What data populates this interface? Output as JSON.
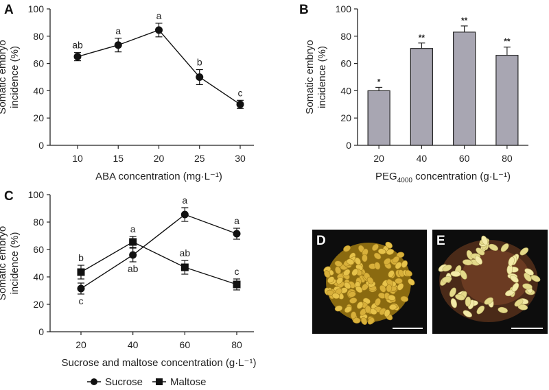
{
  "figure": {
    "panels": {
      "A": "A",
      "B": "B",
      "C": "C",
      "D": "D",
      "E": "E"
    }
  },
  "chart_data": [
    {
      "panel": "A",
      "type": "line",
      "xlabel": "ABA concentration (mg·L⁻¹)",
      "ylabel_line1": "Somatic embryo",
      "ylabel_line2": "incidence (%)",
      "x": [
        10,
        15,
        20,
        25,
        30
      ],
      "ylim": [
        0,
        100
      ],
      "yticks": [
        0,
        20,
        40,
        60,
        80,
        100
      ],
      "series": [
        {
          "values": [
            65,
            73.5,
            84.5,
            50,
            30
          ],
          "errors": [
            3,
            5,
            5,
            5.5,
            3
          ],
          "labels": [
            "ab",
            "a",
            "a",
            "b",
            "c"
          ]
        }
      ],
      "marker_color": "#111111"
    },
    {
      "panel": "B",
      "type": "bar",
      "xlabel_prefix": "PEG",
      "xlabel_sub": "4000",
      "xlabel_suffix": " concentration (g·L⁻¹)",
      "ylabel_line1": "Somatic embryo",
      "ylabel_line2": "incidence (%)",
      "categories": [
        "20",
        "40",
        "60",
        "80"
      ],
      "values": [
        40,
        71,
        83,
        66
      ],
      "errors": [
        2.5,
        4,
        4.5,
        6
      ],
      "labels": [
        "*",
        "**",
        "**",
        "**"
      ],
      "ylim": [
        0,
        100
      ],
      "yticks": [
        0,
        20,
        40,
        60,
        80,
        100
      ],
      "bar_color": "#a8a6b2"
    },
    {
      "panel": "C",
      "type": "line",
      "xlabel": "Sucrose and maltose concentration (g·L⁻¹)",
      "ylabel_line1": "Somatic embryo",
      "ylabel_line2": "incidence (%)",
      "x": [
        20,
        40,
        60,
        80
      ],
      "ylim": [
        0,
        100
      ],
      "yticks": [
        0,
        20,
        40,
        60,
        80,
        100
      ],
      "series": [
        {
          "name": "Sucrose",
          "marker": "circle",
          "values": [
            31.5,
            56,
            85.5,
            71.5
          ],
          "errors": [
            4,
            5,
            5,
            4
          ],
          "labels": [
            "c",
            "ab",
            "a",
            "a"
          ],
          "label_pos": [
            "below",
            "below",
            "above",
            "above"
          ]
        },
        {
          "name": "Maltose",
          "marker": "square",
          "values": [
            43.5,
            65.5,
            47,
            34.5
          ],
          "errors": [
            5,
            4,
            5,
            4
          ],
          "labels": [
            "b",
            "a",
            "ab",
            "c"
          ],
          "label_pos": [
            "above",
            "above",
            "above",
            "above"
          ]
        }
      ],
      "legend_placement": "bottom-center"
    }
  ],
  "photos": [
    {
      "panel": "D",
      "description_icon": "yellow-embryo-cluster-photo"
    },
    {
      "panel": "E",
      "description_icon": "embryo-on-brown-callus-photo"
    }
  ]
}
